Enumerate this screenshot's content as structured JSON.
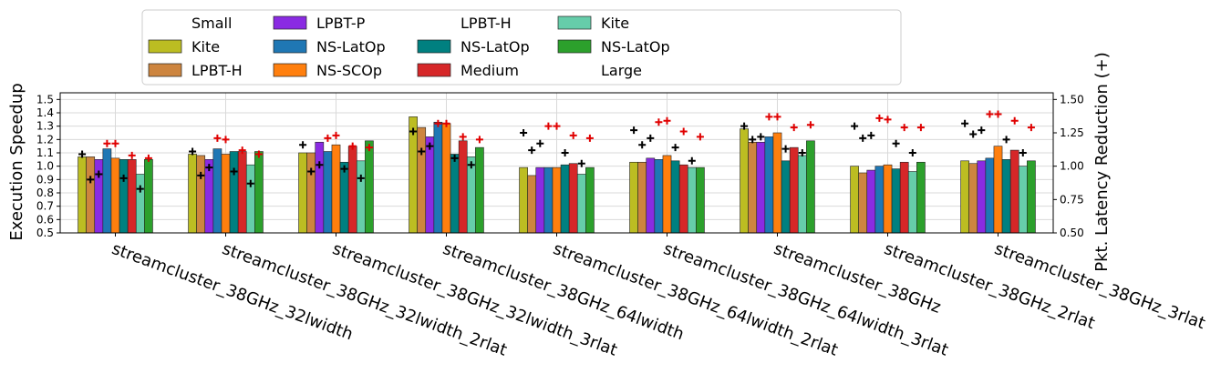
{
  "chart_data": {
    "type": "bar",
    "ylabel": "Execution Speedup",
    "y2label": "Pkt. Latency Reduction (+)",
    "ylim": [
      0.5,
      1.55
    ],
    "y2lim": [
      0.5,
      1.55
    ],
    "yticks": [
      "0.5",
      "0.6",
      "0.7",
      "0.8",
      "0.9",
      "1.0",
      "1.1",
      "1.2",
      "1.3",
      "1.4",
      "1.5"
    ],
    "y2ticks": [
      "0.50",
      "0.75",
      "1.00",
      "1.25",
      "1.50"
    ],
    "grid": true,
    "legend_placement": "top-center",
    "legend": [
      {
        "label": "Small",
        "color": null
      },
      {
        "label": "Kite",
        "color": "#bcbd22"
      },
      {
        "label": "LPBT-H",
        "color": "#cd853f"
      },
      {
        "label": "LPBT-P",
        "color": "#8a2be2"
      },
      {
        "label": "NS-LatOp",
        "color": "#1f77b4"
      },
      {
        "label": "NS-SCOp",
        "color": "#ff7f0e"
      },
      {
        "label": "LPBT-H",
        "color": null
      },
      {
        "label": "NS-LatOp",
        "color": "#008080"
      },
      {
        "label": "Medium",
        "color": "#d62728"
      },
      {
        "label": "Kite",
        "color": "#66cdaa"
      },
      {
        "label": "NS-LatOp",
        "color": "#2ca02c"
      },
      {
        "label": "Large",
        "color": null
      }
    ],
    "bar_colors": [
      "#bcbd22",
      "#cd853f",
      "#8a2be2",
      "#1f77b4",
      "#ff7f0e",
      "#008080",
      "#d62728",
      "#66cdaa",
      "#2ca02c"
    ],
    "categories": [
      "streamcluster_38GHz_32lwidth",
      "streamcluster_38GHz_32lwidth_2rlat",
      "streamcluster_38GHz_32lwidth_3rlat",
      "streamcluster_38GHz_64lwidth",
      "streamcluster_38GHz_64lwidth_2rlat",
      "streamcluster_38GHz_64lwidth_3rlat",
      "streamcluster_38GHz",
      "streamcluster_38GHz_2rlat",
      "streamcluster_38GHz_3rlat"
    ],
    "bar_values": [
      [
        1.07,
        1.07,
        1.05,
        1.13,
        1.06,
        1.05,
        1.05,
        0.94,
        1.05
      ],
      [
        1.09,
        1.08,
        1.05,
        1.13,
        1.09,
        1.11,
        1.11,
        1.01,
        1.11
      ],
      [
        1.1,
        1.1,
        1.18,
        1.11,
        1.16,
        1.03,
        1.15,
        1.04,
        1.19
      ],
      [
        1.37,
        1.29,
        1.22,
        1.33,
        1.32,
        1.09,
        1.19,
        1.07,
        1.14
      ],
      [
        0.99,
        0.93,
        0.99,
        0.99,
        0.99,
        1.01,
        1.02,
        0.94,
        0.99
      ],
      [
        1.03,
        1.03,
        1.06,
        1.05,
        1.08,
        1.04,
        1.01,
        0.99,
        0.99
      ],
      [
        1.28,
        1.18,
        1.18,
        1.22,
        1.25,
        1.04,
        1.14,
        1.08,
        1.19
      ],
      [
        1.0,
        0.95,
        0.97,
        1.0,
        1.01,
        0.98,
        1.03,
        0.96,
        1.03
      ],
      [
        1.04,
        1.02,
        1.04,
        1.06,
        1.15,
        1.05,
        1.12,
        1.0,
        1.04
      ]
    ],
    "latency_black": [
      [
        1.09,
        0.9,
        0.94,
        0.91,
        0.83
      ],
      [
        1.11,
        0.93,
        0.99,
        0.96,
        0.87
      ],
      [
        1.16,
        0.96,
        1.01,
        0.98,
        0.91
      ],
      [
        1.26,
        1.11,
        1.15,
        1.06,
        1.01
      ],
      [
        1.25,
        1.12,
        1.17,
        1.1,
        1.02
      ],
      [
        1.27,
        1.16,
        1.21,
        1.14,
        1.04
      ],
      [
        1.3,
        1.2,
        1.22,
        1.13,
        1.1
      ],
      [
        1.3,
        1.21,
        1.23,
        1.17,
        1.1
      ],
      [
        1.32,
        1.24,
        1.27,
        1.2,
        1.1
      ]
    ],
    "latency_red": [
      [
        1.17,
        1.17,
        1.08,
        1.06
      ],
      [
        1.21,
        1.2,
        1.12,
        1.09
      ],
      [
        1.21,
        1.23,
        1.15,
        1.14
      ],
      [
        1.32,
        1.32,
        1.22,
        1.2
      ],
      [
        1.3,
        1.3,
        1.23,
        1.21
      ],
      [
        1.33,
        1.34,
        1.26,
        1.22
      ],
      [
        1.37,
        1.37,
        1.29,
        1.31
      ],
      [
        1.36,
        1.35,
        1.29,
        1.29
      ],
      [
        1.39,
        1.39,
        1.34,
        1.29
      ]
    ]
  }
}
